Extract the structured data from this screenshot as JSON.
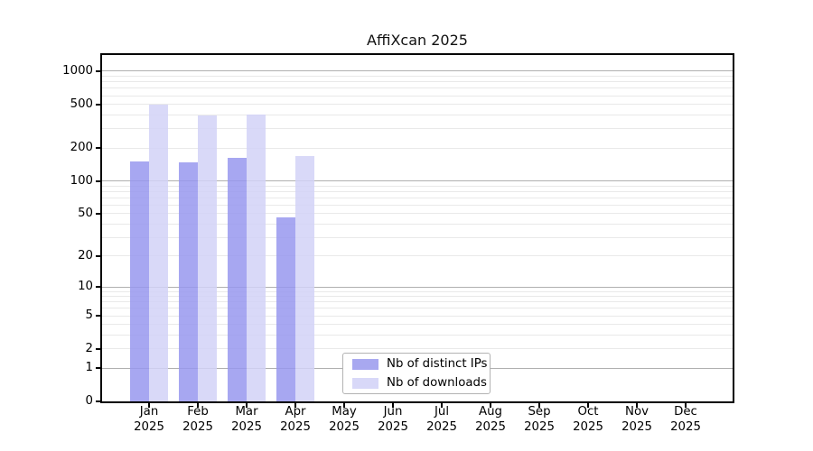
{
  "title": "AffiXcan 2025",
  "legend": {
    "items": [
      {
        "label": "Nb of distinct IPs",
        "color": "#a8a8f0"
      },
      {
        "label": "Nb of downloads",
        "color": "#d8d8f8"
      }
    ]
  },
  "colors": {
    "bar_distinct_ips": "rgba(152,152,238,0.85)",
    "bar_downloads": "rgba(210,210,247,0.85)",
    "grid_major": "#b0b0b0",
    "grid_minor": "#e9e9e9",
    "axis": "#000000"
  },
  "chart_data": {
    "type": "bar",
    "title": "AffiXcan 2025",
    "categories": [
      "Jan 2025",
      "Feb 2025",
      "Mar 2025",
      "Apr 2025",
      "May 2025",
      "Jun 2025",
      "Jul 2025",
      "Aug 2025",
      "Sep 2025",
      "Oct 2025",
      "Nov 2025",
      "Dec 2025"
    ],
    "x_tick_month": [
      "Jan",
      "Feb",
      "Mar",
      "Apr",
      "May",
      "Jun",
      "Jul",
      "Aug",
      "Sep",
      "Oct",
      "Nov",
      "Dec"
    ],
    "x_tick_year": "2025",
    "series": [
      {
        "name": "Nb of distinct IPs",
        "key": "distinct-ips",
        "values": [
          150,
          148,
          162,
          46,
          null,
          null,
          null,
          null,
          null,
          null,
          null,
          null
        ]
      },
      {
        "name": "Nb of downloads",
        "key": "downloads",
        "values": [
          500,
          398,
          405,
          170,
          null,
          null,
          null,
          null,
          null,
          null,
          null,
          null
        ]
      }
    ],
    "y_ticks": [
      1000,
      500,
      200,
      100,
      50,
      20,
      10,
      5,
      2,
      1,
      0
    ],
    "y_scale": "log10(value+1)",
    "ylim": [
      0,
      1400
    ],
    "grid": true,
    "legend_position": "bottom-center"
  }
}
